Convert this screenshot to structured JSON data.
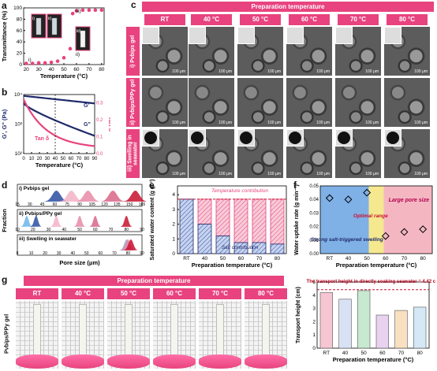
{
  "panels": {
    "a": {
      "label": "a",
      "ylabel": "Transmittance (%)",
      "xlabel": "Temperature (°C)",
      "xticks": [
        "20",
        "30",
        "40",
        "50",
        "60",
        "70",
        "80"
      ],
      "yticks": [
        "0",
        "20",
        "40",
        "60",
        "80",
        "100"
      ],
      "annotations": [
        "i)",
        "ii)",
        "iii)"
      ],
      "inset_labels": [
        "i)",
        "ii)",
        "iii)"
      ]
    },
    "b": {
      "label": "b",
      "ylabel": "G', G\" (Pa)",
      "ylabel_right": "Tan δ",
      "xlabel": "Temperature (°C)",
      "xticks": [
        "0",
        "10",
        "20",
        "30",
        "40",
        "50",
        "60",
        "70",
        "80",
        "90"
      ],
      "yticks_left": [
        "10²",
        "10³",
        "10⁴"
      ],
      "yticks_right": [
        "0.0",
        "0.1",
        "0.2",
        "0.3"
      ],
      "legend": [
        "G'",
        "G\"",
        "Tan δ"
      ]
    },
    "c": {
      "label": "c",
      "header": "Preparation temperature",
      "columns": [
        "RT",
        "40 °C",
        "50 °C",
        "60 °C",
        "70 °C",
        "80 °C"
      ],
      "rows": [
        "i) Pvbips gel",
        "ii) Pvbips/PPy gel",
        "iii) Swelling in seawater"
      ],
      "scale_bar": "100 μm"
    },
    "d": {
      "label": "d",
      "ylabel": "Fraction",
      "xlabel": "Pore size (μm)",
      "rows": [
        {
          "title": "i) Pvbips gel",
          "ticks": [
            "15",
            "30",
            "45",
            "60",
            "75",
            "90",
            "105",
            "120",
            "135",
            "150",
            "165"
          ]
        },
        {
          "title": "ii) Pvbips/PPy gel",
          "ticks": [
            "10",
            "20",
            "30",
            "40",
            "50",
            "60",
            "70",
            "80",
            "90"
          ]
        },
        {
          "title": "iii) Swelling in seawater",
          "ticks": [
            "0",
            "10",
            "20",
            "30",
            "40",
            "50",
            "60",
            "70",
            "80",
            "90"
          ]
        }
      ]
    },
    "e": {
      "label": "e",
      "ylabel": "Saturated water content (g g⁻¹)",
      "xlabel": "Preparation temperature (°C)",
      "top_note": "Temperature contribution",
      "bottom_note": "Salt contribution",
      "categories": [
        "RT",
        "40",
        "50",
        "60",
        "70",
        "80"
      ],
      "yticks": [
        "0",
        "1",
        "2",
        "3",
        "4"
      ]
    },
    "f": {
      "label": "f",
      "ylabel": "Water uptake rate (g min⁻¹)",
      "xlabel": "Preparation temperature (°C)",
      "categories": [
        "RT",
        "40",
        "50",
        "60",
        "70",
        "80"
      ],
      "yticks": [
        "0.00",
        "0.01",
        "0.02",
        "0.03",
        "0.04",
        "0.05"
      ],
      "notes": [
        "Large pore size",
        "Optimal range",
        "Strong salt-triggered swelling"
      ]
    },
    "g": {
      "label": "g",
      "header": "Preparation temperature",
      "columns": [
        "RT",
        "40 °C",
        "50 °C",
        "60 °C",
        "70 °C",
        "80 °C"
      ],
      "row_label": "Pvbips/PPy gel",
      "bar_title": "The transport height in directly soaking seawater = 4.42  cm",
      "bar_ylabel": "Transport height (cm)",
      "bar_xlabel": "Preparation temperature (°C)",
      "categories": [
        "RT",
        "40",
        "50",
        "60",
        "70",
        "80"
      ],
      "yticks": [
        "0",
        "1",
        "2",
        "3",
        "4",
        "5"
      ]
    }
  },
  "chart_data": [
    {
      "type": "scatter",
      "panel": "a",
      "x": [
        20,
        25,
        30,
        35,
        40,
        45,
        50,
        55,
        57,
        60,
        65,
        70,
        75,
        80
      ],
      "y": [
        2,
        2,
        3,
        3,
        4,
        6,
        12,
        28,
        90,
        95,
        96,
        96,
        96,
        96
      ],
      "ylim": [
        0,
        100
      ],
      "xlim": [
        18,
        82
      ]
    },
    {
      "type": "line",
      "panel": "b",
      "series": [
        {
          "name": "G'",
          "x": [
            0,
            90
          ],
          "y": [
            9000,
            5000
          ]
        },
        {
          "name": "G\"",
          "x": [
            0,
            90
          ],
          "y": [
            5000,
            400
          ]
        },
        {
          "name": "Tan δ",
          "x": [
            0,
            90
          ],
          "y": [
            0.32,
            0.03
          ]
        }
      ]
    },
    {
      "type": "bar",
      "panel": "e",
      "categories": [
        "RT",
        "40",
        "50",
        "60",
        "70",
        "80"
      ],
      "series": [
        {
          "name": "salt",
          "values": [
            3.7,
            2.0,
            1.2,
            0.75,
            0.75,
            0.65
          ]
        },
        {
          "name": "total",
          "values": [
            3.7,
            3.7,
            3.7,
            3.7,
            3.7,
            3.7
          ]
        }
      ],
      "ylim": [
        0,
        4.6
      ]
    },
    {
      "type": "scatter",
      "panel": "f",
      "categories": [
        "RT",
        "40",
        "50",
        "60",
        "70",
        "80"
      ],
      "values": [
        0.041,
        0.04,
        0.045,
        0.013,
        0.016,
        0.018
      ],
      "ylim": [
        0,
        0.05
      ]
    },
    {
      "type": "bar",
      "panel": "g",
      "categories": [
        "RT",
        "40",
        "50",
        "60",
        "70",
        "80"
      ],
      "values": [
        4.2,
        3.7,
        4.35,
        2.5,
        2.85,
        3.1
      ],
      "reference": 4.42,
      "ylim": [
        0,
        5
      ]
    }
  ],
  "colors": {
    "pink": "#e8437e",
    "navy": "#1f2a6b",
    "blue": "#2b4ea0",
    "lightblue": "#6fb5ea",
    "yellow": "#f5e88f",
    "redbg": "#f4b7c2"
  }
}
